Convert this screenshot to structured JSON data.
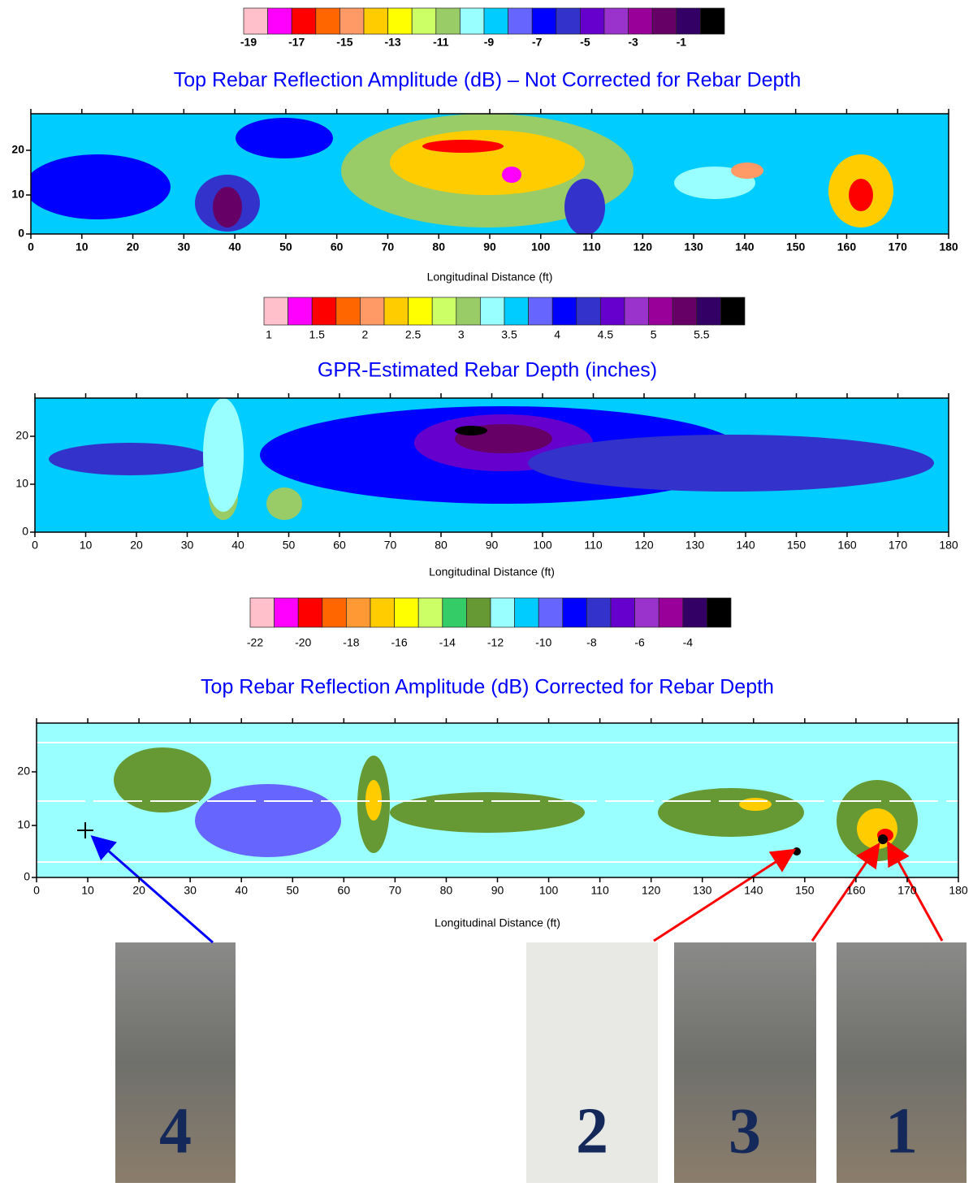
{
  "colorbars": [
    {
      "colors": [
        "#ffc0cb",
        "#ff00ff",
        "#ff0000",
        "#ff6600",
        "#ff9966",
        "#ffcc00",
        "#ffff00",
        "#ccff66",
        "#99cc66",
        "#99ffff",
        "#00ccff",
        "#6666ff",
        "#0000ff",
        "#3333cc",
        "#6600cc",
        "#9933cc",
        "#990099",
        "#660066",
        "#330066",
        "#000000"
      ],
      "labels": [
        "-19",
        "-17",
        "-15",
        "-13",
        "-11",
        "-9",
        "-7",
        "-5",
        "-3",
        "-1"
      ]
    },
    {
      "colors": [
        "#ffc0cb",
        "#ff00ff",
        "#ff0000",
        "#ff6600",
        "#ff9966",
        "#ffcc00",
        "#ffff00",
        "#ccff66",
        "#99cc66",
        "#99ffff",
        "#00ccff",
        "#6666ff",
        "#0000ff",
        "#3333cc",
        "#6600cc",
        "#9933cc",
        "#990099",
        "#660066",
        "#330066",
        "#000000"
      ],
      "labels": [
        "1",
        "1.5",
        "2",
        "2.5",
        "3",
        "3.5",
        "4",
        "4.5",
        "5",
        "5.5"
      ]
    },
    {
      "colors": [
        "#ffc0cb",
        "#ff00ff",
        "#ff0000",
        "#ff6600",
        "#ff9933",
        "#ffcc00",
        "#ffff00",
        "#ccff66",
        "#33cc66",
        "#669933",
        "#99ffff",
        "#00ccff",
        "#6666ff",
        "#0000ff",
        "#3333cc",
        "#6600cc",
        "#9933cc",
        "#990099",
        "#330066",
        "#000000"
      ],
      "labels": [
        "-22",
        "-20",
        "-18",
        "-16",
        "-14",
        "-12",
        "-10",
        "-8",
        "-6",
        "-4"
      ]
    }
  ],
  "panels": [
    {
      "title": "Top Rebar Reflection Amplitude (dB) – Not Corrected for Rebar Depth",
      "x_labels": [
        "0",
        "10",
        "20",
        "30",
        "40",
        "50",
        "60",
        "70",
        "80",
        "90",
        "100",
        "110",
        "120",
        "130",
        "140",
        "150",
        "160",
        "170",
        "180"
      ],
      "y_labels": [
        "0",
        "10",
        "20"
      ],
      "x_axis_label": "Longitudinal Distance (ft)"
    },
    {
      "title": "GPR-Estimated Rebar Depth (inches)",
      "x_labels": [
        "0",
        "10",
        "20",
        "30",
        "40",
        "50",
        "60",
        "70",
        "80",
        "90",
        "100",
        "110",
        "120",
        "130",
        "140",
        "150",
        "160",
        "170",
        "180"
      ],
      "y_labels": [
        "0",
        "10",
        "20"
      ],
      "x_axis_label": "Longitudinal Distance (ft)"
    },
    {
      "title": "Top Rebar Reflection Amplitude (dB) Corrected for Rebar Depth",
      "x_labels": [
        "0",
        "10",
        "20",
        "30",
        "40",
        "50",
        "60",
        "70",
        "80",
        "90",
        "100",
        "110",
        "120",
        "130",
        "140",
        "150",
        "160",
        "170",
        "180"
      ],
      "y_labels": [
        "0",
        "10",
        "20"
      ],
      "x_axis_label": "Longitudinal Distance (ft)"
    }
  ],
  "cores": [
    {
      "label": "4"
    },
    {
      "label": "2"
    },
    {
      "label": "3"
    },
    {
      "label": "1"
    }
  ]
}
